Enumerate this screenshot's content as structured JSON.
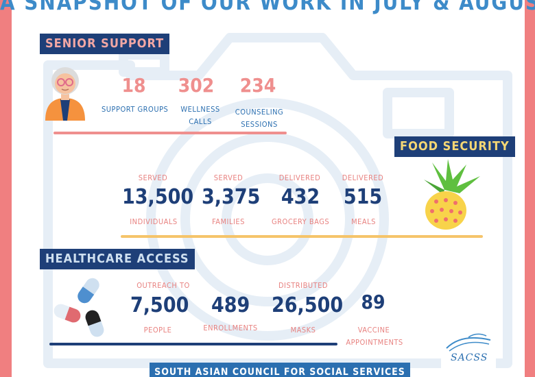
{
  "title": "A SNAPSHOT OF OUR WORK IN JULY & AUGUST",
  "senior": {
    "label": "SENIOR SUPPORT",
    "stats": [
      {
        "value": "18",
        "label1": "SUPPORT GROUPS",
        "label2": ""
      },
      {
        "value": "302",
        "label1": "WELLNESS",
        "label2": "CALLS"
      },
      {
        "value": "234",
        "label1": "COUNSELING",
        "label2": "SESSIONS"
      }
    ]
  },
  "food": {
    "label": "FOOD SECURITY",
    "stats": [
      {
        "top": "SERVED",
        "value": "13,500",
        "bottom": "INDIVIDUALS"
      },
      {
        "top": "SERVED",
        "value": "3,375",
        "bottom": "FAMILIES"
      },
      {
        "top": "DELIVERED",
        "value": "432",
        "bottom": "GROCERY BAGS"
      },
      {
        "top": "DELIVERED",
        "value": "515",
        "bottom": "MEALS"
      }
    ]
  },
  "health": {
    "label": "HEALTHCARE ACCESS",
    "stats": [
      {
        "top": "OUTREACH TO",
        "value": "7,500",
        "bottom": "PEOPLE",
        "bottom2": ""
      },
      {
        "top": "",
        "value": "489",
        "bottom": "ENROLLMENTS",
        "bottom2": ""
      },
      {
        "top": "DISTRIBUTED",
        "value": "26,500",
        "bottom": "MASKS",
        "bottom2": ""
      },
      {
        "top": "",
        "value": "89",
        "bottom": "VACCINE",
        "bottom2": "APPOINTMENTS"
      }
    ]
  },
  "footer": "SOUTH ASIAN COUNCIL FOR SOCIAL SERVICES",
  "logo_text": "SACSS",
  "colors": {
    "frame": "#f07f80",
    "navy": "#1e3f78",
    "blue": "#2b6fb0",
    "pink": "#ef8f8e",
    "gold": "#f5c46a",
    "camera_outline": "#e6eef6"
  },
  "icons": {
    "senior": "elderly-person-icon",
    "food": "pineapple-icon",
    "health": "pills-icon",
    "background": "camera-outline-icon"
  }
}
